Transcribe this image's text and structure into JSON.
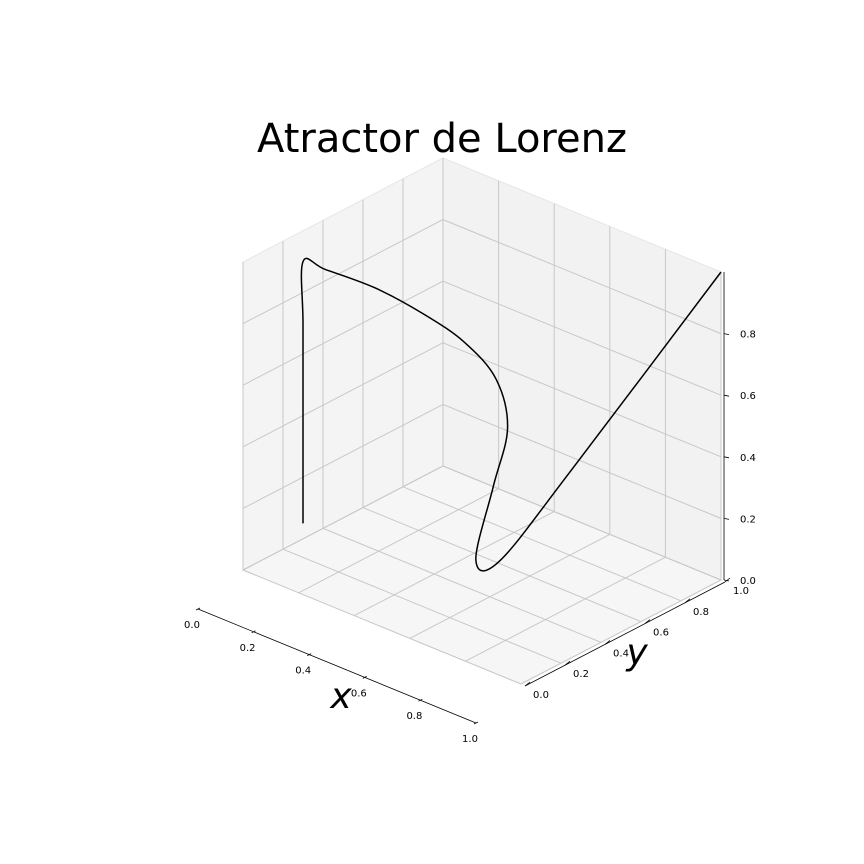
{
  "chart_data": {
    "type": "line",
    "title": "Atractor de Lorenz",
    "xlabel": "x",
    "ylabel": "y",
    "zlabel": "",
    "xlim": [
      0.0,
      1.0
    ],
    "ylim": [
      0.0,
      1.0
    ],
    "zlim": [
      0.0,
      1.0
    ],
    "x_ticks": [
      "0.0",
      "0.2",
      "0.4",
      "0.6",
      "0.8",
      "1.0"
    ],
    "y_ticks": [
      "0.0",
      "0.2",
      "0.4",
      "0.6",
      "0.8",
      "1.0"
    ],
    "z_ticks": [
      "0.0",
      "0.2",
      "0.4",
      "0.6",
      "0.8"
    ],
    "grid": true,
    "line_color": "#000000",
    "pane_colors": {
      "left": "#f4f4f4",
      "back": "#f2f2f2",
      "floor": "#f6f6f6"
    },
    "series": [
      {
        "points": [
          [
            0.0,
            0.3,
            0.05
          ],
          [
            0.0,
            0.3,
            0.4
          ],
          [
            0.0,
            0.3,
            0.7
          ],
          [
            0.0,
            0.3,
            0.9
          ],
          [
            0.05,
            0.34,
            0.88
          ],
          [
            0.15,
            0.45,
            0.82
          ],
          [
            0.25,
            0.55,
            0.74
          ],
          [
            0.35,
            0.62,
            0.66
          ],
          [
            0.45,
            0.64,
            0.57
          ],
          [
            0.52,
            0.6,
            0.45
          ],
          [
            0.54,
            0.5,
            0.3
          ],
          [
            0.55,
            0.4,
            0.1
          ],
          [
            0.6,
            0.45,
            0.1
          ],
          [
            0.75,
            0.6,
            0.4
          ],
          [
            1.0,
            1.0,
            1.0
          ]
        ]
      }
    ]
  }
}
